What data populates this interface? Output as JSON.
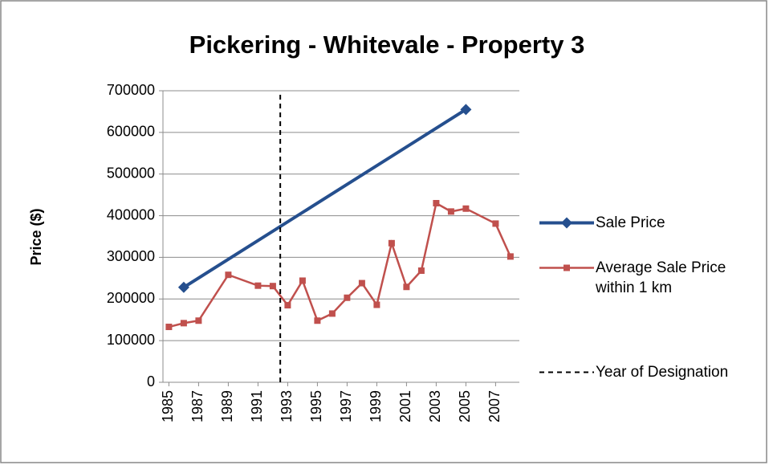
{
  "chart_data": {
    "type": "line",
    "title": "Pickering - Whitevale - Property 3",
    "ylabel": "Price ($)",
    "xlim": [
      1984.6,
      2008.6
    ],
    "xticks": [
      1985,
      1987,
      1989,
      1991,
      1993,
      1995,
      1997,
      1999,
      2001,
      2003,
      2005,
      2007
    ],
    "ylim": [
      0,
      700000
    ],
    "yticks": [
      0,
      100000,
      200000,
      300000,
      400000,
      500000,
      600000,
      700000
    ],
    "grid": true,
    "series": [
      {
        "name": "Sale Price",
        "color": "#254f8e",
        "marker": "diamond",
        "x": [
          1986,
          2005
        ],
        "values": [
          228000,
          655000
        ]
      },
      {
        "name": "Average Sale Price within 1 km",
        "color": "#c0504d",
        "marker": "square",
        "x": [
          1985,
          1986,
          1987,
          1989,
          1991,
          1992,
          1993,
          1994,
          1995,
          1996,
          1997,
          1998,
          1999,
          2000,
          2001,
          2002,
          2003,
          2004,
          2005,
          2007,
          2008
        ],
        "values": [
          133000,
          142000,
          148000,
          258000,
          232000,
          231000,
          185000,
          244000,
          148000,
          165000,
          203000,
          238000,
          186000,
          334000,
          229000,
          268000,
          430000,
          410000,
          417000,
          381000,
          302000
        ]
      },
      {
        "name": "Year of Designation",
        "color": "#000000",
        "dashed": true,
        "x": [
          1992.5,
          1992.5
        ],
        "values": [
          0,
          700000
        ]
      }
    ]
  }
}
